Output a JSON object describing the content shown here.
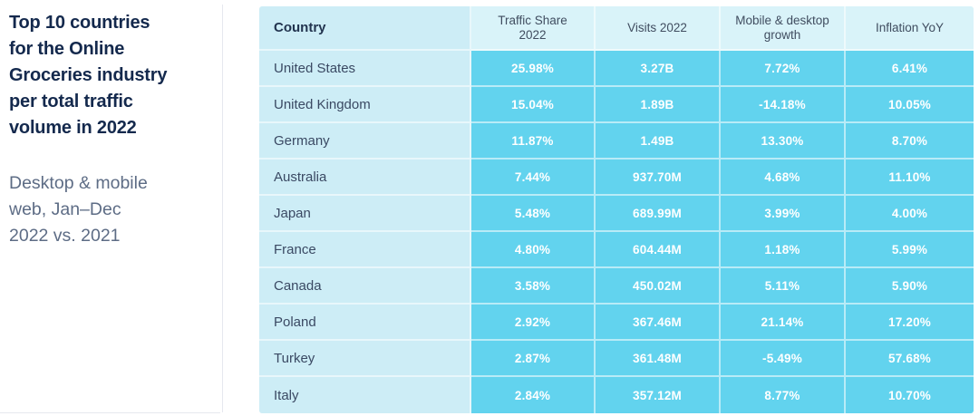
{
  "theme": {
    "cell_bright": "#62d3ee",
    "cell_light": "#cdedf6",
    "header_light": "#d9f3f9",
    "title_text": "#14294d",
    "subtitle_text": "#5d6c85",
    "value_text": "#ffffff"
  },
  "sidebar": {
    "title": "Top 10 countries\nfor the Online\nGroceries industry\nper total traffic\nvolume in 2022",
    "subtitle": "Desktop & mobile\nweb, Jan–Dec\n2022 vs. 2021"
  },
  "table": {
    "columns": [
      "Country",
      "Traffic Share 2022",
      "Visits 2022",
      "Mobile & desktop growth",
      "Inflation YoY"
    ],
    "rows": [
      {
        "country": "United States",
        "traffic_share": "25.98%",
        "visits": "3.27B",
        "mobile_desktop_growth": "7.72%",
        "inflation_yoy": "6.41%"
      },
      {
        "country": "United Kingdom",
        "traffic_share": "15.04%",
        "visits": "1.89B",
        "mobile_desktop_growth": "-14.18%",
        "inflation_yoy": "10.05%"
      },
      {
        "country": "Germany",
        "traffic_share": "11.87%",
        "visits": "1.49B",
        "mobile_desktop_growth": "13.30%",
        "inflation_yoy": "8.70%"
      },
      {
        "country": "Australia",
        "traffic_share": "7.44%",
        "visits": "937.70M",
        "mobile_desktop_growth": "4.68%",
        "inflation_yoy": "11.10%"
      },
      {
        "country": "Japan",
        "traffic_share": "5.48%",
        "visits": "689.99M",
        "mobile_desktop_growth": "3.99%",
        "inflation_yoy": "4.00%"
      },
      {
        "country": "France",
        "traffic_share": "4.80%",
        "visits": "604.44M",
        "mobile_desktop_growth": "1.18%",
        "inflation_yoy": "5.99%"
      },
      {
        "country": "Canada",
        "traffic_share": "3.58%",
        "visits": "450.02M",
        "mobile_desktop_growth": "5.11%",
        "inflation_yoy": "5.90%"
      },
      {
        "country": "Poland",
        "traffic_share": "2.92%",
        "visits": "367.46M",
        "mobile_desktop_growth": "21.14%",
        "inflation_yoy": "17.20%"
      },
      {
        "country": "Turkey",
        "traffic_share": "2.87%",
        "visits": "361.48M",
        "mobile_desktop_growth": "-5.49%",
        "inflation_yoy": "57.68%"
      },
      {
        "country": "Italy",
        "traffic_share": "2.84%",
        "visits": "357.12M",
        "mobile_desktop_growth": "8.77%",
        "inflation_yoy": "10.70%"
      }
    ]
  },
  "chart_data": {
    "type": "table",
    "title": "Top 10 countries for the Online Groceries industry per total traffic volume in 2022",
    "subtitle": "Desktop & mobile web, Jan–Dec 2022 vs. 2021",
    "columns": [
      "Country",
      "Traffic Share 2022",
      "Visits 2022",
      "Mobile & desktop growth",
      "Inflation YoY"
    ],
    "rows": [
      [
        "United States",
        "25.98%",
        "3.27B",
        "7.72%",
        "6.41%"
      ],
      [
        "United Kingdom",
        "15.04%",
        "1.89B",
        "-14.18%",
        "10.05%"
      ],
      [
        "Germany",
        "11.87%",
        "1.49B",
        "13.30%",
        "8.70%"
      ],
      [
        "Australia",
        "7.44%",
        "937.70M",
        "4.68%",
        "11.10%"
      ],
      [
        "Japan",
        "5.48%",
        "689.99M",
        "3.99%",
        "4.00%"
      ],
      [
        "France",
        "4.80%",
        "604.44M",
        "1.18%",
        "5.99%"
      ],
      [
        "Canada",
        "3.58%",
        "450.02M",
        "5.11%",
        "5.90%"
      ],
      [
        "Poland",
        "2.92%",
        "367.46M",
        "21.14%",
        "17.20%"
      ],
      [
        "Turkey",
        "2.87%",
        "361.48M",
        "-5.49%",
        "57.68%"
      ],
      [
        "Italy",
        "2.84%",
        "357.12M",
        "8.77%",
        "10.70%"
      ]
    ]
  }
}
